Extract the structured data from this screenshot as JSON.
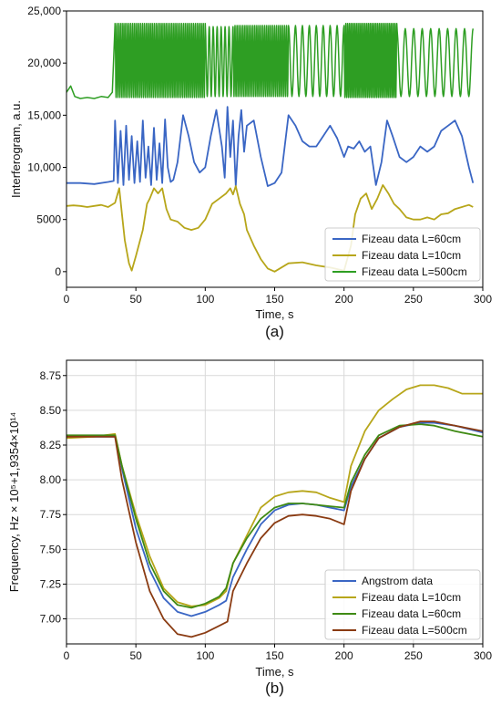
{
  "chart_data": [
    {
      "type": "line",
      "panel_label": "(a)",
      "xlabel": "Time, s",
      "ylabel": "Interferogram, a.u.",
      "xlim": [
        0,
        300
      ],
      "ylim": [
        -1500,
        25000
      ],
      "x_ticks": [
        0,
        50,
        100,
        150,
        200,
        250,
        300
      ],
      "x_tick_labels": [
        "0",
        "50",
        "100",
        "150",
        "200",
        "250",
        "300"
      ],
      "y_ticks": [
        0,
        5000,
        10000,
        15000,
        20000,
        25000
      ],
      "y_tick_labels": [
        "0",
        "5000",
        "10,000",
        "15,000",
        "20,000",
        "25,000"
      ],
      "grid": false,
      "legend_position": "bottom-right",
      "series": [
        {
          "name": "Fizeau data L=60cm",
          "color": "#3a66c4",
          "x": [
            0,
            10,
            20,
            30,
            34,
            35,
            37,
            39,
            41,
            43,
            45,
            47,
            49,
            51,
            53,
            55,
            57,
            59,
            61,
            63,
            65,
            67,
            69,
            71,
            73,
            75,
            77,
            80,
            84,
            88,
            92,
            96,
            100,
            104,
            108,
            112,
            114,
            116,
            118,
            120,
            122,
            124,
            126,
            128,
            130,
            135,
            140,
            145,
            150,
            155,
            160,
            165,
            170,
            175,
            180,
            185,
            190,
            195,
            200,
            203,
            207,
            211,
            215,
            219,
            223,
            227,
            231,
            235,
            240,
            245,
            250,
            255,
            260,
            265,
            270,
            275,
            280,
            285,
            290,
            293
          ],
          "y": [
            8500,
            8500,
            8400,
            8600,
            8700,
            14500,
            8500,
            13500,
            8300,
            14000,
            8800,
            13000,
            8500,
            12500,
            8600,
            14500,
            9000,
            12000,
            8300,
            13800,
            8800,
            12300,
            8500,
            14600,
            10000,
            8600,
            8800,
            10500,
            15000,
            13000,
            10500,
            9500,
            10000,
            13000,
            15500,
            12000,
            9000,
            15800,
            11000,
            14500,
            8200,
            13000,
            15500,
            11500,
            14000,
            14500,
            11000,
            8200,
            8500,
            9500,
            15000,
            14000,
            12500,
            12000,
            12000,
            13000,
            14000,
            12800,
            11000,
            12000,
            11800,
            12500,
            11500,
            12000,
            8300,
            10500,
            14500,
            13000,
            11000,
            10500,
            11000,
            12000,
            11500,
            12000,
            13500,
            14000,
            14500,
            13000,
            10000,
            8500
          ]
        },
        {
          "name": "Fizeau data L=10cm",
          "color": "#b7a61a",
          "x": [
            0,
            5,
            10,
            15,
            20,
            25,
            30,
            35,
            38,
            40,
            42,
            45,
            47,
            50,
            55,
            58,
            60,
            63,
            66,
            69,
            72,
            75,
            80,
            85,
            90,
            95,
            100,
            105,
            110,
            115,
            118,
            120,
            122,
            125,
            128,
            130,
            135,
            140,
            145,
            150,
            160,
            170,
            180,
            190,
            200,
            205,
            208,
            212,
            216,
            220,
            224,
            228,
            232,
            236,
            240,
            245,
            250,
            255,
            260,
            265,
            270,
            275,
            280,
            285,
            290,
            293
          ],
          "y": [
            6300,
            6350,
            6300,
            6200,
            6300,
            6400,
            6200,
            6600,
            8000,
            5500,
            3000,
            800,
            100,
            1500,
            4000,
            6500,
            7000,
            8000,
            7500,
            8000,
            6000,
            5000,
            4800,
            4200,
            4000,
            4200,
            5000,
            6500,
            7000,
            7500,
            8000,
            7400,
            8200,
            6500,
            5500,
            4000,
            2500,
            1200,
            300,
            0,
            800,
            900,
            600,
            400,
            100,
            2500,
            5500,
            7000,
            7500,
            6000,
            7000,
            8300,
            7500,
            6500,
            6000,
            5200,
            5000,
            5000,
            5200,
            5000,
            5500,
            5600,
            6000,
            6200,
            6400,
            6200
          ]
        },
        {
          "name": "Fizeau data L=500cm",
          "color": "#2e9e23",
          "x": [
            0,
            3,
            6,
            10,
            15,
            20,
            25,
            30,
            33,
            35
          ],
          "y": [
            17200,
            17800,
            16800,
            16600,
            16700,
            16600,
            16800,
            16700,
            17200,
            23800
          ],
          "oscillating_segments": [
            {
              "x_start": 35,
              "x_end": 100,
              "y_min": 16700,
              "y_max": 23800,
              "cycles": 46
            },
            {
              "x_start": 100,
              "x_end": 120,
              "y_min": 16800,
              "y_max": 23500,
              "cycles": 7
            },
            {
              "x_start": 120,
              "x_end": 160,
              "y_min": 16800,
              "y_max": 23600,
              "cycles": 28
            },
            {
              "x_start": 160,
              "x_end": 200,
              "y_min": 16800,
              "y_max": 23600,
              "cycles": 8
            },
            {
              "x_start": 200,
              "x_end": 238,
              "y_min": 16700,
              "y_max": 23800,
              "cycles": 30
            },
            {
              "x_start": 238,
              "x_end": 293,
              "y_min": 16800,
              "y_max": 23300,
              "cycles": 9
            }
          ]
        }
      ]
    },
    {
      "type": "line",
      "panel_label": "(b)",
      "xlabel": "Time, s",
      "ylabel": "Frequency, Hz × 10⁵+1,9354×10¹⁴",
      "xlim": [
        0,
        300
      ],
      "ylim": [
        6.82,
        8.86
      ],
      "x_ticks": [
        0,
        50,
        100,
        150,
        200,
        250,
        300
      ],
      "x_tick_labels": [
        "0",
        "50",
        "100",
        "150",
        "200",
        "250",
        "300"
      ],
      "y_ticks": [
        7.0,
        7.25,
        7.5,
        7.75,
        8.0,
        8.25,
        8.5,
        8.75
      ],
      "y_tick_labels": [
        "7.00",
        "7.25",
        "7.50",
        "7.75",
        "8.00",
        "8.25",
        "8.50",
        "8.75"
      ],
      "grid": true,
      "legend_position": "bottom-right",
      "series": [
        {
          "name": "Angstrom data",
          "color": "#3a66c4",
          "x": [
            0,
            20,
            35,
            40,
            50,
            60,
            70,
            80,
            90,
            100,
            110,
            115,
            120,
            130,
            140,
            150,
            160,
            170,
            180,
            190,
            200,
            205,
            215,
            225,
            240,
            255,
            265,
            280,
            300
          ],
          "y": [
            8.31,
            8.31,
            8.31,
            8.08,
            7.65,
            7.35,
            7.15,
            7.05,
            7.02,
            7.05,
            7.1,
            7.13,
            7.3,
            7.5,
            7.68,
            7.78,
            7.82,
            7.83,
            7.82,
            7.8,
            7.78,
            7.95,
            8.15,
            8.3,
            8.38,
            8.41,
            8.41,
            8.39,
            8.34
          ]
        },
        {
          "name": "Fizeau data L=10cm",
          "color": "#b7a61a",
          "x": [
            0,
            20,
            35,
            40,
            50,
            60,
            70,
            80,
            90,
            100,
            110,
            115,
            120,
            130,
            140,
            150,
            160,
            170,
            180,
            190,
            200,
            205,
            215,
            225,
            235,
            245,
            255,
            265,
            275,
            285,
            300
          ],
          "y": [
            8.3,
            8.31,
            8.33,
            8.1,
            7.75,
            7.45,
            7.22,
            7.12,
            7.09,
            7.1,
            7.15,
            7.2,
            7.4,
            7.6,
            7.8,
            7.88,
            7.91,
            7.92,
            7.91,
            7.87,
            7.84,
            8.1,
            8.35,
            8.5,
            8.58,
            8.65,
            8.68,
            8.68,
            8.66,
            8.62,
            8.62
          ]
        },
        {
          "name": "Fizeau data L=60cm",
          "color": "#3f8a14",
          "x": [
            0,
            20,
            35,
            40,
            50,
            60,
            70,
            80,
            90,
            100,
            110,
            115,
            120,
            130,
            140,
            150,
            160,
            170,
            180,
            190,
            200,
            205,
            215,
            225,
            240,
            255,
            265,
            280,
            300
          ],
          "y": [
            8.32,
            8.32,
            8.32,
            8.1,
            7.72,
            7.4,
            7.2,
            7.1,
            7.08,
            7.11,
            7.16,
            7.22,
            7.4,
            7.58,
            7.72,
            7.8,
            7.83,
            7.83,
            7.82,
            7.81,
            7.8,
            7.98,
            8.18,
            8.32,
            8.39,
            8.4,
            8.39,
            8.35,
            8.31
          ]
        },
        {
          "name": "Fizeau data L=500cm",
          "color": "#8a3b12",
          "x": [
            0,
            20,
            35,
            40,
            50,
            60,
            70,
            80,
            90,
            100,
            110,
            116,
            120,
            130,
            140,
            150,
            160,
            170,
            180,
            190,
            200,
            205,
            215,
            225,
            240,
            255,
            265,
            280,
            300
          ],
          "y": [
            8.31,
            8.31,
            8.31,
            8.0,
            7.55,
            7.2,
            7.0,
            6.89,
            6.87,
            6.9,
            6.95,
            6.98,
            7.2,
            7.4,
            7.58,
            7.69,
            7.74,
            7.75,
            7.74,
            7.72,
            7.68,
            7.92,
            8.15,
            8.3,
            8.38,
            8.42,
            8.42,
            8.39,
            8.35
          ]
        }
      ]
    }
  ]
}
